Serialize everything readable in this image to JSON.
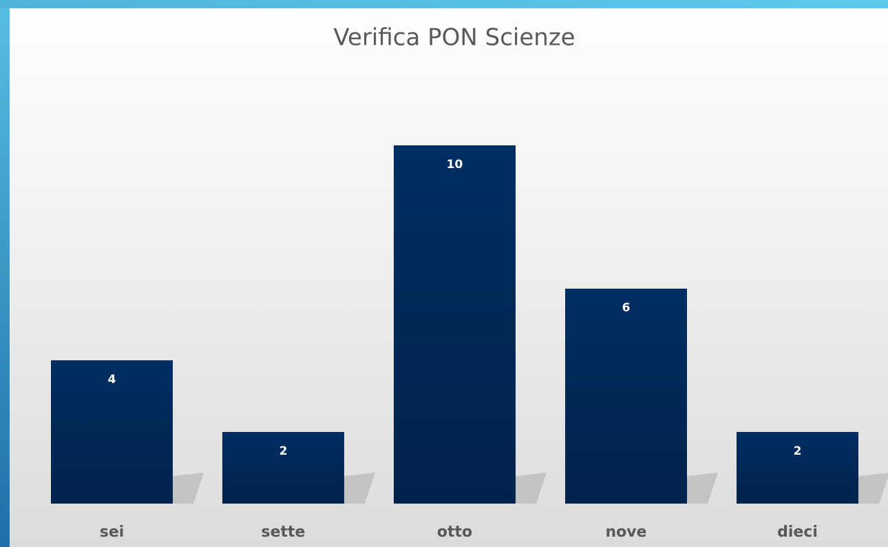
{
  "chart_data": {
    "type": "bar",
    "title": "Verifica PON Scienze",
    "categories": [
      "sei",
      "sette",
      "otto",
      "nove",
      "dieci"
    ],
    "values": [
      4,
      2,
      10,
      6,
      2
    ],
    "color": "#002d62"
  }
}
